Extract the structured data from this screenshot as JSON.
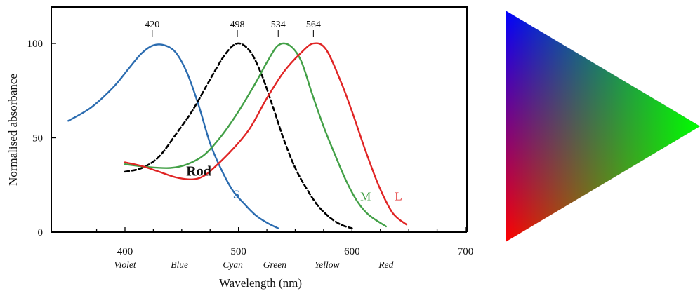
{
  "chart_data": {
    "type": "line",
    "title": "",
    "xlabel": "Wavelength (nm)",
    "ylabel": "Normalised absorbance",
    "xlim": [
      350,
      700
    ],
    "ylim": [
      0,
      120
    ],
    "x_ticks": [
      {
        "value": 400,
        "label": "400"
      },
      {
        "value": 500,
        "label": "500"
      },
      {
        "value": 600,
        "label": "600"
      },
      {
        "value": 700,
        "label": "700"
      }
    ],
    "y_ticks": [
      {
        "value": 0,
        "label": "0"
      },
      {
        "value": 50,
        "label": "50"
      },
      {
        "value": 100,
        "label": "100"
      }
    ],
    "color_names": [
      {
        "label": "Violet",
        "x": 400
      },
      {
        "label": "Blue",
        "x": 448
      },
      {
        "label": "Cyan",
        "x": 495
      },
      {
        "label": "Green",
        "x": 532
      },
      {
        "label": "Yellow",
        "x": 578
      },
      {
        "label": "Red",
        "x": 630
      }
    ],
    "peaks": [
      {
        "label": "420",
        "x": 424
      },
      {
        "label": "498",
        "x": 499
      },
      {
        "label": "534",
        "x": 535
      },
      {
        "label": "564",
        "x": 566
      }
    ],
    "series": [
      {
        "name": "S",
        "color": "#2b6cb0",
        "dash": false,
        "label_at": [
          498,
          18
        ],
        "points": [
          [
            350,
            59
          ],
          [
            370,
            66
          ],
          [
            390,
            77
          ],
          [
            405,
            88
          ],
          [
            415,
            95
          ],
          [
            425,
            99
          ],
          [
            435,
            99
          ],
          [
            445,
            95
          ],
          [
            455,
            84
          ],
          [
            465,
            67
          ],
          [
            475,
            47
          ],
          [
            485,
            33
          ],
          [
            495,
            22
          ],
          [
            505,
            15
          ],
          [
            515,
            9
          ],
          [
            525,
            5
          ],
          [
            535,
            2
          ]
        ]
      },
      {
        "name": "Rod",
        "color": "#000000",
        "dash": true,
        "label_at": [
          465,
          30
        ],
        "points": [
          [
            400,
            32
          ],
          [
            415,
            34
          ],
          [
            430,
            40
          ],
          [
            445,
            52
          ],
          [
            460,
            65
          ],
          [
            475,
            81
          ],
          [
            488,
            94
          ],
          [
            499,
            100
          ],
          [
            510,
            96
          ],
          [
            520,
            84
          ],
          [
            530,
            67
          ],
          [
            540,
            49
          ],
          [
            550,
            34
          ],
          [
            560,
            23
          ],
          [
            570,
            14
          ],
          [
            580,
            8
          ],
          [
            590,
            4
          ],
          [
            600,
            2
          ]
        ]
      },
      {
        "name": "M",
        "color": "#43a047",
        "dash": false,
        "label_at": [
          612,
          17
        ],
        "points": [
          [
            400,
            36
          ],
          [
            420,
            34.5
          ],
          [
            440,
            34
          ],
          [
            455,
            36
          ],
          [
            470,
            41
          ],
          [
            485,
            51
          ],
          [
            500,
            64
          ],
          [
            515,
            79
          ],
          [
            525,
            90
          ],
          [
            535,
            99
          ],
          [
            545,
            99
          ],
          [
            555,
            91
          ],
          [
            565,
            73
          ],
          [
            575,
            56
          ],
          [
            585,
            41
          ],
          [
            595,
            27
          ],
          [
            605,
            16
          ],
          [
            615,
            9
          ],
          [
            630,
            3
          ]
        ]
      },
      {
        "name": "L",
        "color": "#e02424",
        "dash": false,
        "label_at": [
          641,
          17
        ],
        "points": [
          [
            400,
            37
          ],
          [
            415,
            35
          ],
          [
            430,
            32
          ],
          [
            445,
            29
          ],
          [
            460,
            28
          ],
          [
            470,
            30
          ],
          [
            480,
            35
          ],
          [
            495,
            44
          ],
          [
            510,
            55
          ],
          [
            525,
            71
          ],
          [
            540,
            85
          ],
          [
            555,
            95
          ],
          [
            566,
            100
          ],
          [
            577,
            97
          ],
          [
            590,
            80
          ],
          [
            600,
            64
          ],
          [
            612,
            43
          ],
          [
            624,
            24
          ],
          [
            636,
            10
          ],
          [
            648,
            4
          ]
        ]
      }
    ]
  }
}
